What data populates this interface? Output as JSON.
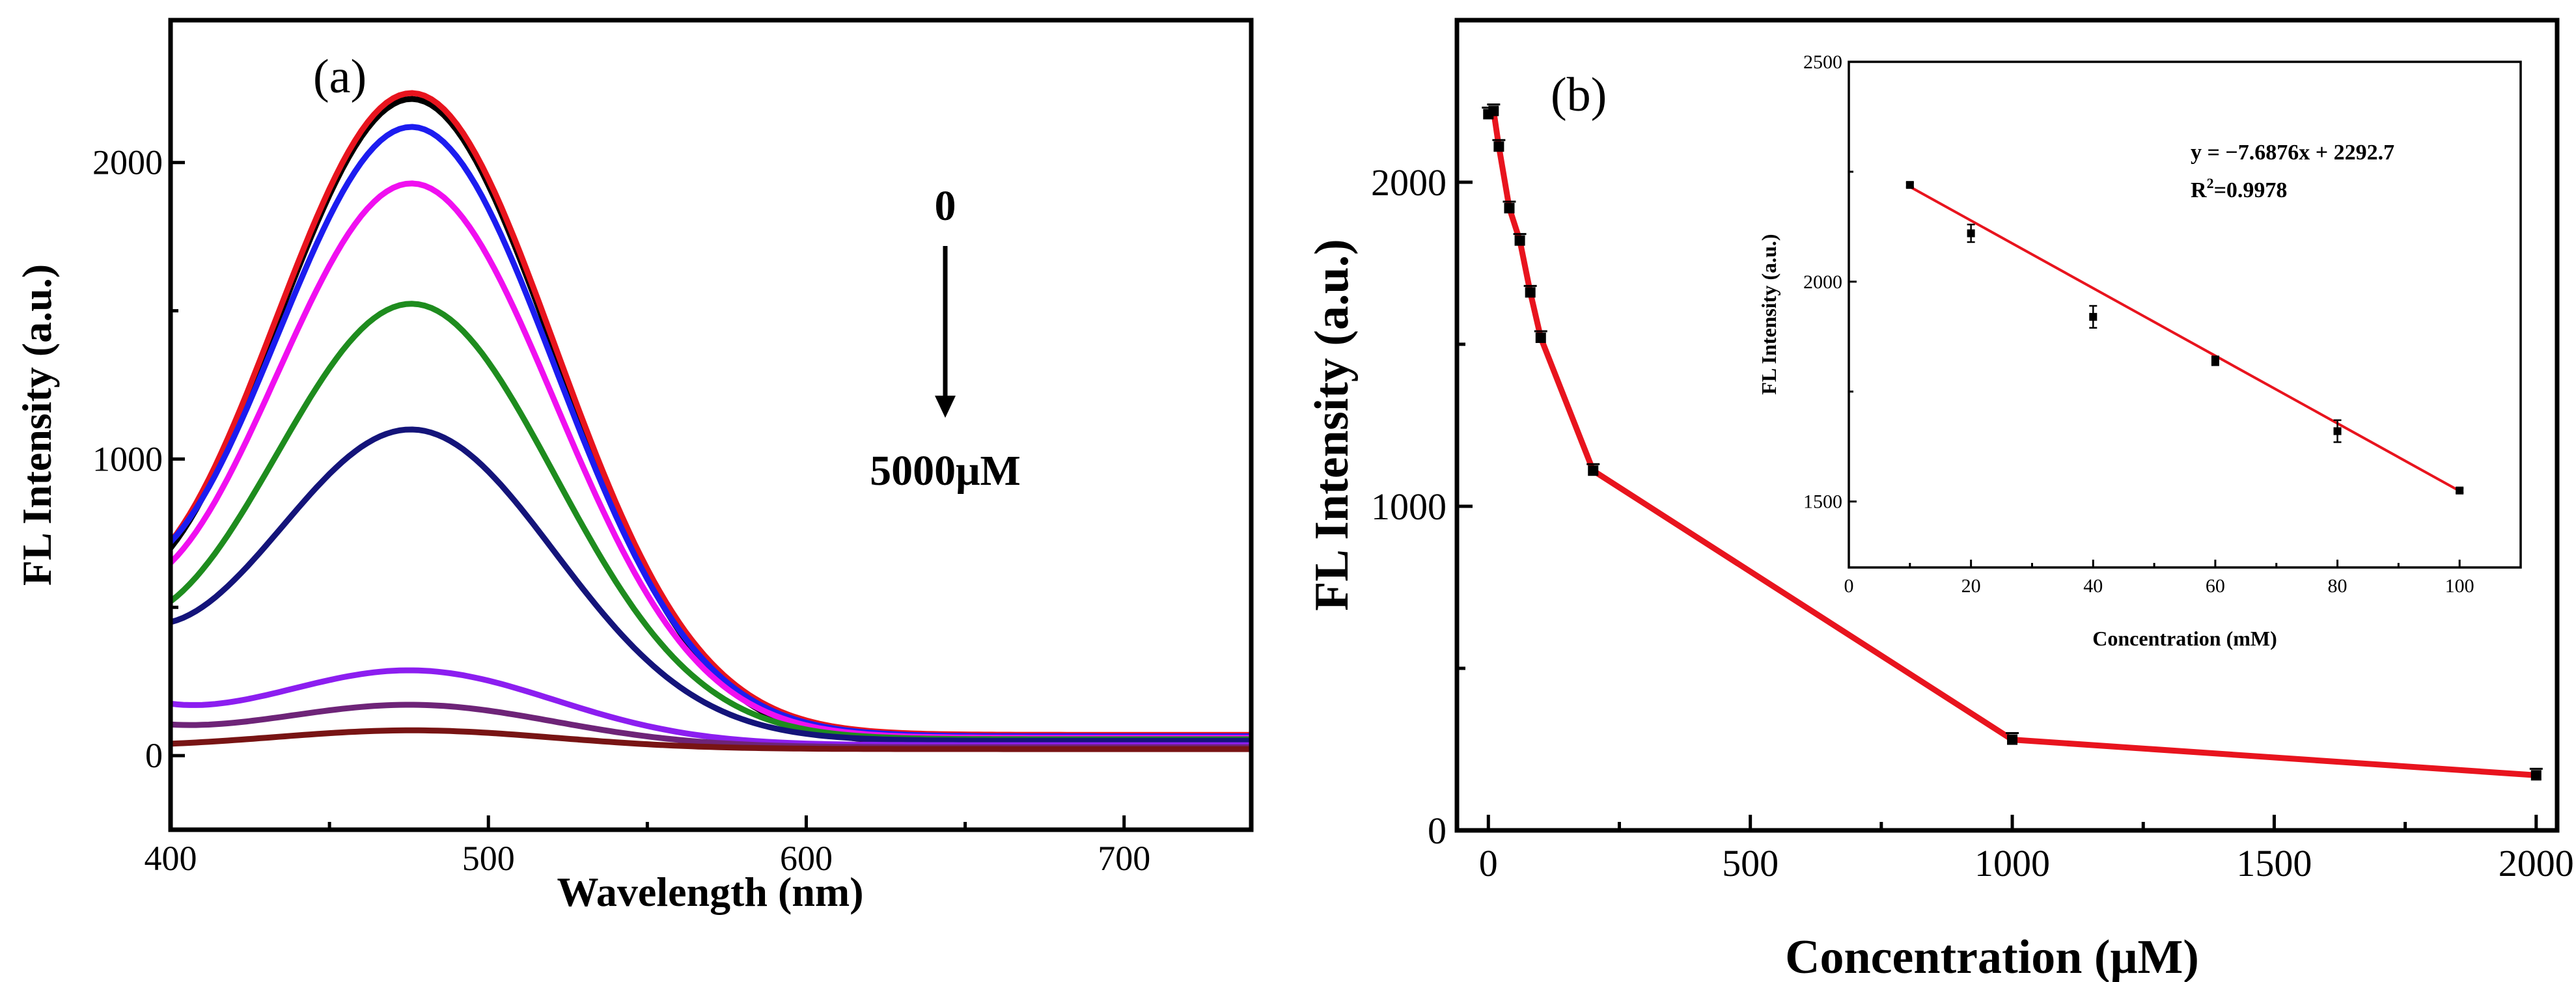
{
  "chart_data": [
    {
      "panel": "(a)",
      "type": "line",
      "xlabel": "Wavelength (nm)",
      "ylabel": "FL Intensity (a.u.)",
      "xlim": [
        400,
        740
      ],
      "ylim": [
        -250,
        2480
      ],
      "xticks": [
        400,
        500,
        600,
        700
      ],
      "yticks": [
        0,
        1000,
        2000
      ],
      "annotation_top": "0",
      "annotation_bottom": "5000μM",
      "arrow": "down",
      "series": [
        {
          "name": "black",
          "color": "#000000",
          "peak": 2210,
          "start": 700,
          "tail": 40
        },
        {
          "name": "red",
          "color": "#e8141e",
          "peak": 2230,
          "start": 720,
          "tail": 70
        },
        {
          "name": "blue",
          "color": "#1c1cf0",
          "peak": 2115,
          "start": 720,
          "tail": 65
        },
        {
          "name": "magenta",
          "color": "#f00ff0",
          "peak": 1925,
          "start": 650,
          "tail": 60
        },
        {
          "name": "green",
          "color": "#1e8c1e",
          "peak": 1520,
          "start": 520,
          "tail": 55
        },
        {
          "name": "navy",
          "color": "#14147a",
          "peak": 1095,
          "start": 450,
          "tail": 50
        },
        {
          "name": "violet",
          "color": "#8c1ef0",
          "peak": 285,
          "start": 175,
          "tail": 35
        },
        {
          "name": "purple",
          "color": "#6e2478",
          "peak": 170,
          "start": 105,
          "tail": 28
        },
        {
          "name": "maroon",
          "color": "#781414",
          "peak": 85,
          "start": 40,
          "tail": 22
        }
      ]
    },
    {
      "panel": "(b)",
      "type": "line",
      "xlabel": "Concentration (μM)",
      "ylabel": "FL Intensity (a.u.)",
      "xlim": [
        -60,
        2040
      ],
      "ylim": [
        0,
        2500
      ],
      "xticks": [
        0,
        500,
        1000,
        1500,
        2000
      ],
      "yticks": [
        0,
        1000,
        2000
      ],
      "color": "#e8141e",
      "x": [
        0,
        10,
        20,
        40,
        60,
        80,
        100,
        200,
        1000,
        2000
      ],
      "y": [
        2210,
        2220,
        2110,
        1920,
        1820,
        1660,
        1520,
        1110,
        280,
        170
      ],
      "inset": {
        "type": "scatter",
        "xlabel": "Concentration (mM)",
        "ylabel": "FL Intensity (a.u.)",
        "xlim": [
          0,
          110
        ],
        "ylim": [
          1350,
          2500
        ],
        "xticks": [
          0,
          20,
          40,
          60,
          80,
          100
        ],
        "yticks": [
          1500,
          2000,
          2500
        ],
        "x": [
          10,
          20,
          40,
          60,
          80,
          100
        ],
        "y": [
          2220,
          2110,
          1920,
          1820,
          1660,
          1525
        ],
        "err": [
          5,
          20,
          25,
          10,
          25,
          5
        ],
        "fit_slope": -7.6876,
        "fit_intercept": 2292.7,
        "equation": "y = −7.6876x + 2292.7",
        "r2_label": "R",
        "r2_sup": "2",
        "r2_value": "=0.9978"
      }
    }
  ]
}
